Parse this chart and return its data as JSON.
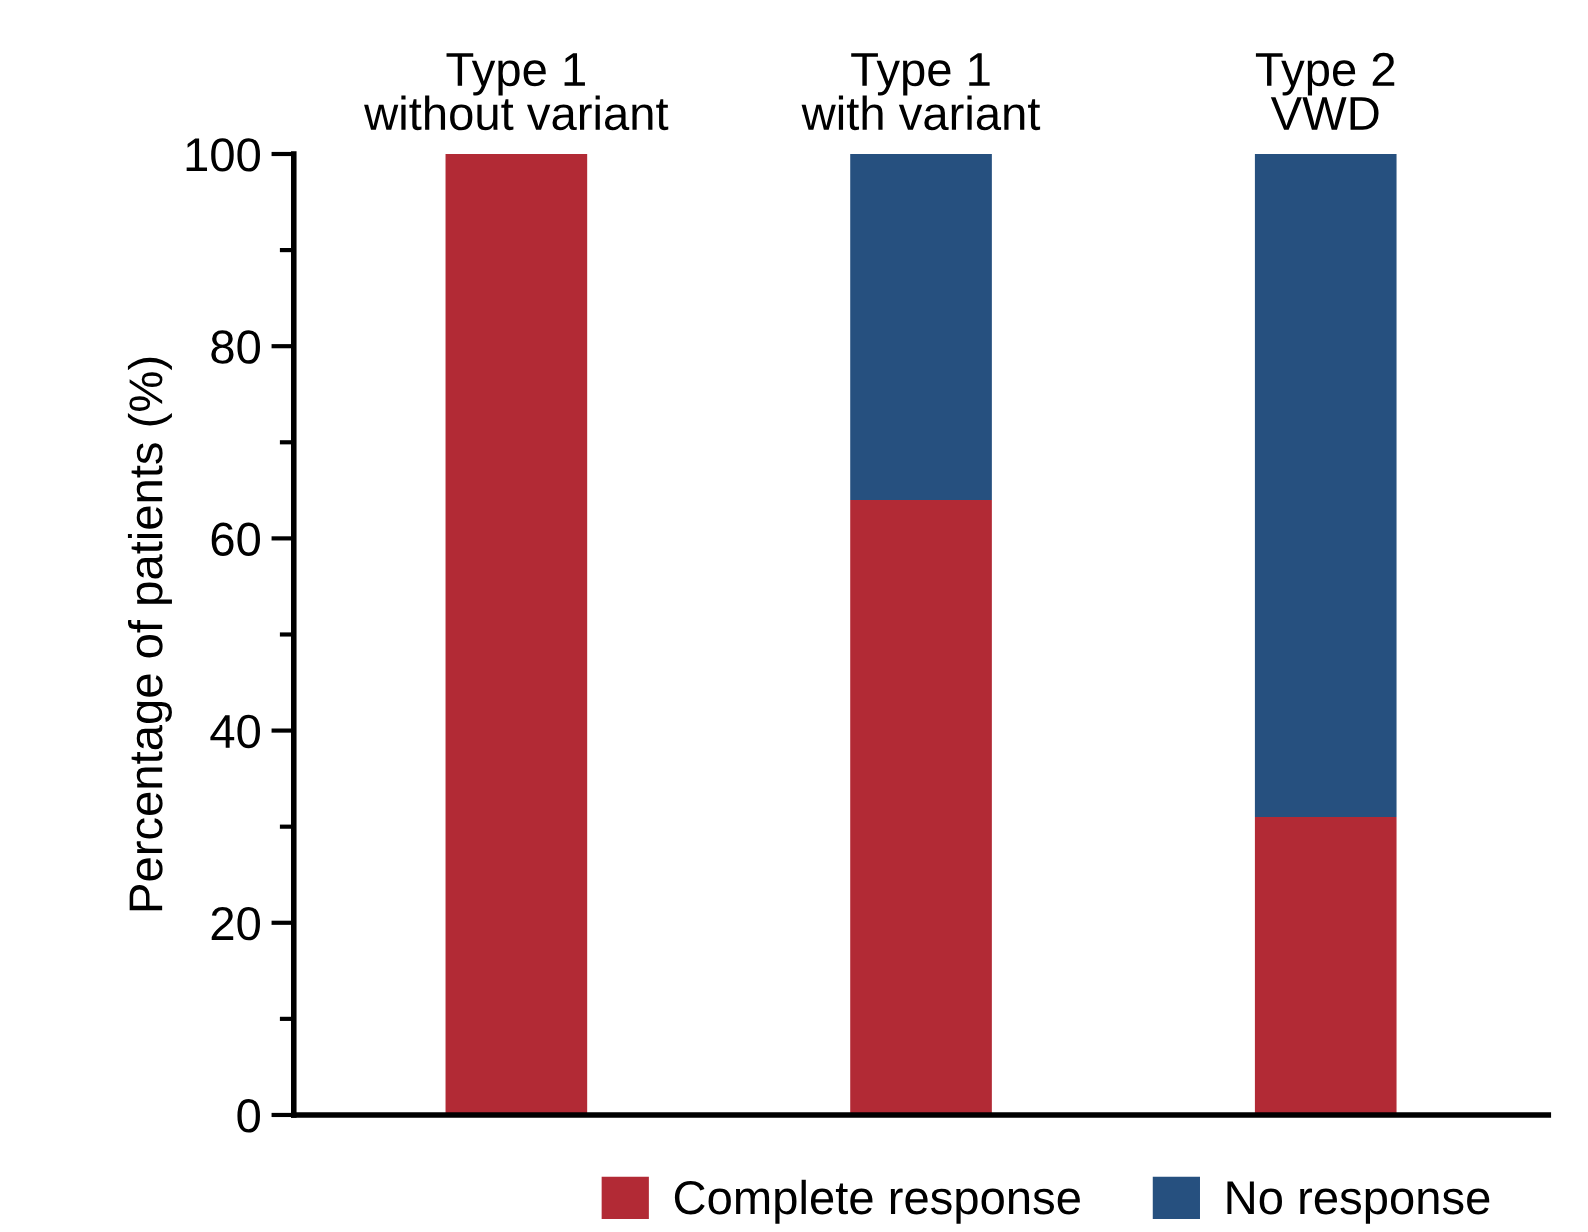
{
  "chart_data": {
    "type": "bar",
    "stacked": true,
    "categories": [
      "Type 1\nwithout variant",
      "Type 1\nwith variant",
      "Type 2\nVWD"
    ],
    "series": [
      {
        "name": "Complete response",
        "color": "#b22a35",
        "values": [
          100,
          64,
          31
        ]
      },
      {
        "name": "No response",
        "color": "#26507f",
        "values": [
          0,
          36,
          69
        ]
      }
    ],
    "ylabel": "Percentage of patients (%)",
    "ylim": [
      0,
      100
    ],
    "yticks": [
      0,
      20,
      40,
      60,
      80,
      100
    ],
    "grid": false,
    "legend": "bottom"
  }
}
